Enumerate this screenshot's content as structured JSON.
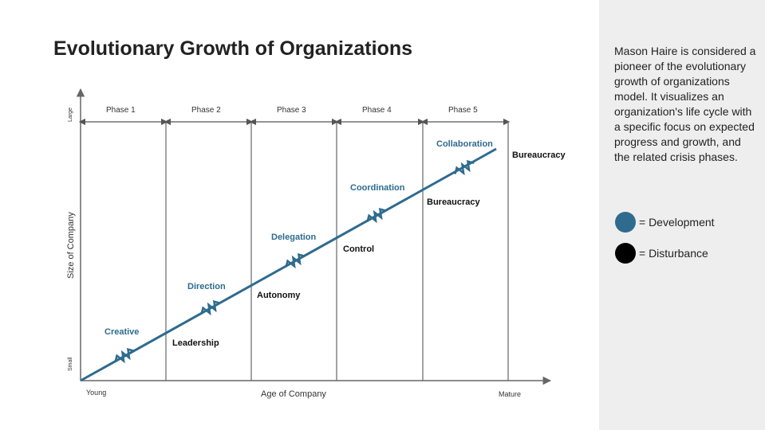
{
  "title": "Evolutionary Growth of Organizations",
  "description": "Mason Haire is considered a pioneer of the evolutionary growth of organizations model. It visualizes an organization's life cycle with a specific focus on expected progress and growth, and the related crisis phases.",
  "axes": {
    "y_label": "Size of Company",
    "y_top": "Large",
    "y_bottom": "Small",
    "x_label": "Age of Company",
    "x_left": "Young",
    "x_right": "Mature"
  },
  "phases": [
    "Phase 1",
    "Phase 2",
    "Phase 3",
    "Phase 4",
    "Phase 5"
  ],
  "stages": [
    {
      "development": "Creative",
      "disturbance": "Leadership"
    },
    {
      "development": "Direction",
      "disturbance": "Autonomy"
    },
    {
      "development": "Delegation",
      "disturbance": "Control"
    },
    {
      "development": "Coordination",
      "disturbance": "Bureaucracy"
    },
    {
      "development": "Collaboration",
      "disturbance": "Bureaucracy"
    }
  ],
  "legend": {
    "development": {
      "label": "= Development",
      "color": "#2e6b8e"
    },
    "disturbance": {
      "label": "= Disturbance",
      "color": "#000000"
    }
  },
  "colors": {
    "growth_line": "#2e6b8e",
    "grid": "#666666"
  }
}
